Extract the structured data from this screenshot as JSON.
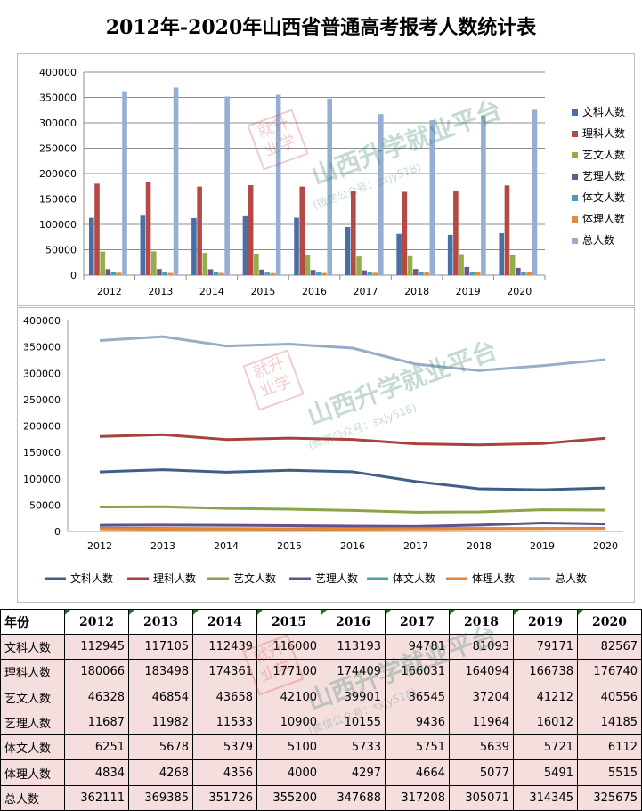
{
  "title": "2012年-2020年山西省普通高考报考人数统计表",
  "watermark": {
    "seal": [
      "就升",
      "业学"
    ],
    "name": "山西升学就业平台",
    "sub": "(微信公众号：sxjy518)"
  },
  "chart_data": [
    {
      "type": "bar",
      "categories": [
        "2012",
        "2013",
        "2014",
        "2015",
        "2016",
        "2017",
        "2018",
        "2019",
        "2020"
      ],
      "ylim": [
        0,
        400000
      ],
      "yticks": [
        0,
        50000,
        100000,
        150000,
        200000,
        250000,
        300000,
        350000,
        400000
      ],
      "grid": true,
      "legend": "right",
      "series": [
        {
          "name": "文科人数",
          "color": "#4a6fa5",
          "values": [
            112945,
            117105,
            112439,
            116000,
            113193,
            94781,
            81093,
            79171,
            82567
          ]
        },
        {
          "name": "理科人数",
          "color": "#b54a45",
          "values": [
            180066,
            183498,
            174361,
            177100,
            174409,
            166031,
            164094,
            166738,
            176740
          ]
        },
        {
          "name": "艺文人数",
          "color": "#93ad4a",
          "values": [
            46328,
            46854,
            43658,
            42100,
            39901,
            36545,
            37204,
            41212,
            40556
          ]
        },
        {
          "name": "艺理人数",
          "color": "#6e5791",
          "values": [
            11687,
            11982,
            11533,
            10900,
            10155,
            9436,
            11964,
            16012,
            14185
          ]
        },
        {
          "name": "体文人数",
          "color": "#4a9eb2",
          "values": [
            6251,
            5678,
            5379,
            5100,
            5733,
            5751,
            5639,
            5721,
            6112
          ]
        },
        {
          "name": "体理人数",
          "color": "#e08c3c",
          "values": [
            4834,
            4268,
            4356,
            4000,
            4297,
            4664,
            5077,
            5491,
            5515
          ]
        },
        {
          "name": "总人数",
          "color": "#95aed3",
          "values": [
            362111,
            369385,
            351726,
            355200,
            347688,
            317208,
            305071,
            314345,
            325675
          ]
        }
      ]
    },
    {
      "type": "line",
      "categories": [
        "2012",
        "2013",
        "2014",
        "2015",
        "2016",
        "2017",
        "2018",
        "2019",
        "2020"
      ],
      "ylim": [
        0,
        400000
      ],
      "yticks": [
        0,
        50000,
        100000,
        150000,
        200000,
        250000,
        300000,
        350000,
        400000
      ],
      "grid": false,
      "legend": "bottom",
      "series": [
        {
          "name": "文科人数",
          "color": "#3f5e8a",
          "values": [
            112945,
            117105,
            112439,
            116000,
            113193,
            94781,
            81093,
            79171,
            82567
          ]
        },
        {
          "name": "理科人数",
          "color": "#a8403b",
          "values": [
            180066,
            183498,
            174361,
            177100,
            174409,
            166031,
            164094,
            166738,
            176740
          ]
        },
        {
          "name": "艺文人数",
          "color": "#8aa548",
          "values": [
            46328,
            46854,
            43658,
            42100,
            39901,
            36545,
            37204,
            41212,
            40556
          ]
        },
        {
          "name": "艺理人数",
          "color": "#66508a",
          "values": [
            11687,
            11982,
            11533,
            10900,
            10155,
            9436,
            11964,
            16012,
            14185
          ]
        },
        {
          "name": "体文人数",
          "color": "#4aa0b5",
          "values": [
            6251,
            5678,
            5379,
            5100,
            5733,
            5751,
            5639,
            5721,
            6112
          ]
        },
        {
          "name": "体理人数",
          "color": "#e0873a",
          "values": [
            4834,
            4268,
            4356,
            4000,
            4297,
            4664,
            5077,
            5491,
            5515
          ]
        },
        {
          "name": "总人数",
          "color": "#97acc8",
          "values": [
            362111,
            369385,
            351726,
            355200,
            347688,
            317208,
            305071,
            314345,
            325675
          ]
        }
      ]
    }
  ],
  "table": {
    "corner": "年份",
    "years": [
      "2012",
      "2013",
      "2014",
      "2015",
      "2016",
      "2017",
      "2018",
      "2019",
      "2020"
    ],
    "rows": [
      {
        "label": "文科人数",
        "values": [
          "112945",
          "117105",
          "112439",
          "116000",
          "113193",
          "94781",
          "81093",
          "79171",
          "82567"
        ]
      },
      {
        "label": "理科人数",
        "values": [
          "180066",
          "183498",
          "174361",
          "177100",
          "174409",
          "166031",
          "164094",
          "166738",
          "176740"
        ]
      },
      {
        "label": "艺文人数",
        "values": [
          "46328",
          "46854",
          "43658",
          "42100",
          "39901",
          "36545",
          "37204",
          "41212",
          "40556"
        ]
      },
      {
        "label": "艺理人数",
        "values": [
          "11687",
          "11982",
          "11533",
          "10900",
          "10155",
          "9436",
          "11964",
          "16012",
          "14185"
        ]
      },
      {
        "label": "体文人数",
        "values": [
          "6251",
          "5678",
          "5379",
          "5100",
          "5733",
          "5751",
          "5639",
          "5721",
          "6112"
        ]
      },
      {
        "label": "体理人数",
        "values": [
          "4834",
          "4268",
          "4356",
          "4000",
          "4297",
          "4664",
          "5077",
          "5491",
          "5515"
        ]
      },
      {
        "label": "总人数",
        "values": [
          "362111",
          "369385",
          "351726",
          "355200",
          "347688",
          "317208",
          "305071",
          "314345",
          "325675"
        ]
      }
    ]
  }
}
